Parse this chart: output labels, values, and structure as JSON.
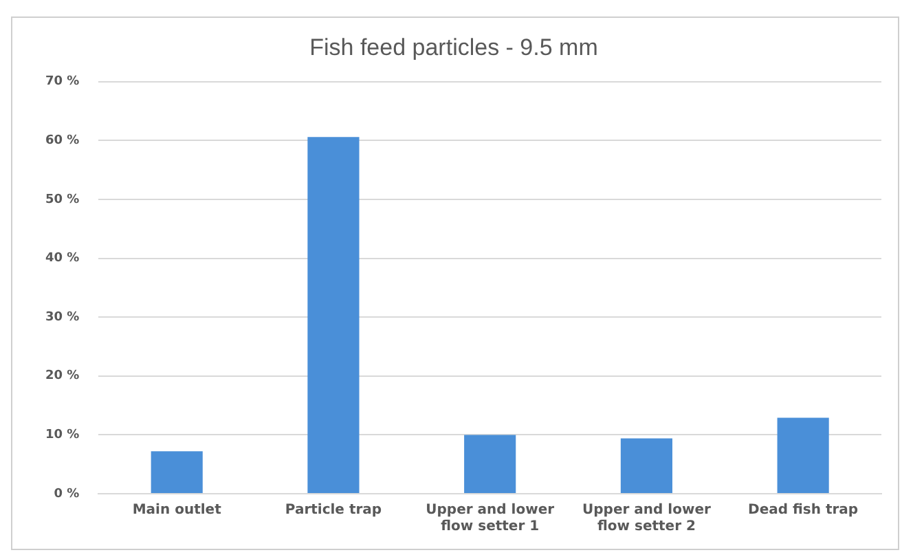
{
  "chart_data": {
    "type": "bar",
    "title": "Fish feed particles - 9.5 mm",
    "categories": [
      "Main outlet",
      "Particle trap",
      "Upper and lower flow setter 1",
      "Upper and lower flow setter 2",
      "Dead fish trap"
    ],
    "values": [
      7.2,
      60.6,
      10.0,
      9.4,
      12.9
    ],
    "color": "#4a8fd8",
    "ylim": [
      0,
      70
    ],
    "yticks": [
      {
        "value": 0,
        "label": "0 %"
      },
      {
        "value": 10,
        "label": "10 %"
      },
      {
        "value": 20,
        "label": "20 %"
      },
      {
        "value": 30,
        "label": "30 %"
      },
      {
        "value": 40,
        "label": "40 %"
      },
      {
        "value": 50,
        "label": "50 %"
      },
      {
        "value": 60,
        "label": "60 %"
      },
      {
        "value": 70,
        "label": "70 %"
      }
    ],
    "grid": "y",
    "legend": false
  }
}
